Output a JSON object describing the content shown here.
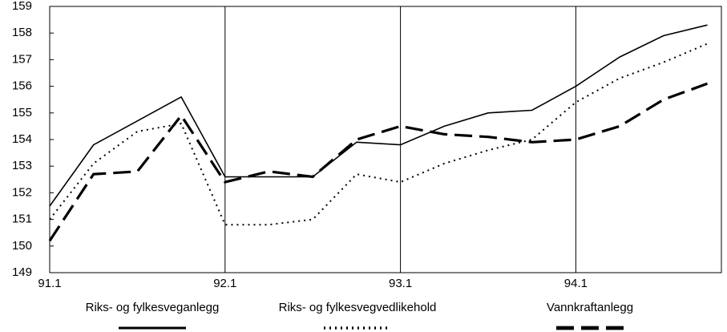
{
  "chart_data": {
    "type": "line",
    "categories": [
      "91.1",
      null,
      null,
      null,
      "92.1",
      null,
      null,
      null,
      "93.1",
      null,
      null,
      null,
      "94.1",
      null,
      null,
      null
    ],
    "series": [
      {
        "name": "Riks- og fylkesveganlegg",
        "color": "#000000",
        "style": "solid",
        "values": [
          151.5,
          153.8,
          154.7,
          155.6,
          152.6,
          152.6,
          152.6,
          153.9,
          153.8,
          154.5,
          155.0,
          155.1,
          156.0,
          157.1,
          157.9,
          158.3
        ]
      },
      {
        "name": "Riks- og fylkesvegvedlikehold",
        "color": "#000000",
        "style": "dotted",
        "values": [
          151.0,
          153.1,
          154.3,
          154.6,
          150.8,
          150.8,
          151.0,
          152.7,
          152.4,
          153.1,
          153.6,
          154.0,
          155.4,
          156.3,
          156.9,
          157.6
        ]
      },
      {
        "name": "Vannkraftanlegg",
        "color": "#000000",
        "style": "dashed",
        "values": [
          150.2,
          152.7,
          152.8,
          154.9,
          152.4,
          152.8,
          152.6,
          154.0,
          154.5,
          154.2,
          154.1,
          153.9,
          154.0,
          154.5,
          155.5,
          156.1
        ]
      }
    ],
    "ylim": [
      149,
      159
    ],
    "yticks": [
      149,
      150,
      151,
      152,
      153,
      154,
      155,
      156,
      157,
      158,
      159
    ],
    "grid": true,
    "legend": "bottom"
  }
}
